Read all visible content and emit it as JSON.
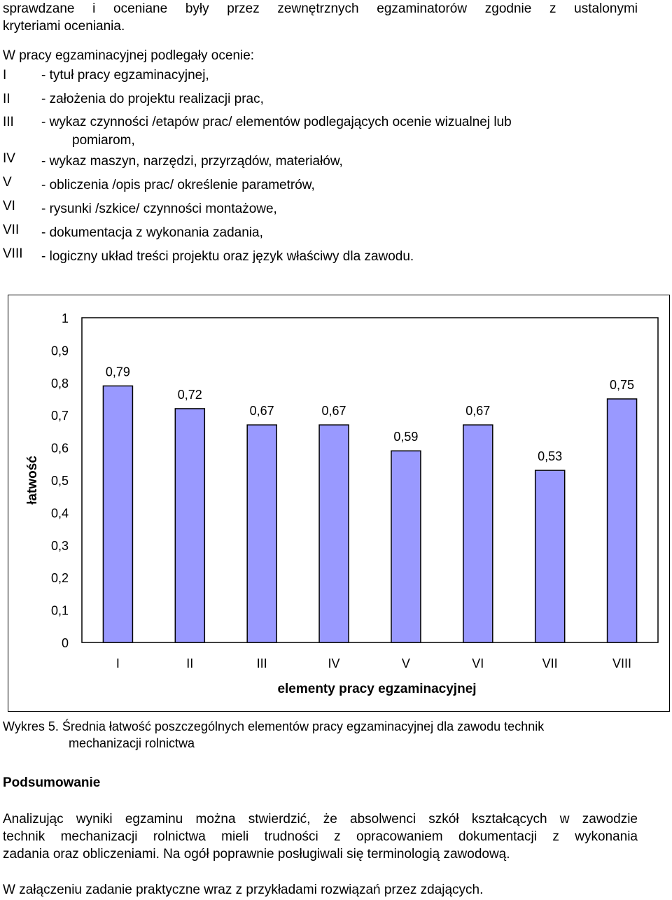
{
  "intro": {
    "line1": "sprawdzane i oceniane były przez zewnętrznych egzaminatorów zgodnie z ustalonymi",
    "line2": "kryteriami oceniania."
  },
  "list": {
    "header": "W pracy egzaminacyjnej podlegały ocenie:",
    "items": [
      {
        "num": "I",
        "text": "- tytuł pracy egzaminacyjnej,"
      },
      {
        "num": "II",
        "text": "- założenia do projektu realizacji prac,"
      },
      {
        "num": "III",
        "text": "- wykaz czynności /etapów prac/ elementów podlegających ocenie wizualnej lub",
        "cont": "pomiarom,"
      },
      {
        "num": "IV",
        "text": "- wykaz maszyn, narzędzi, przyrządów, materiałów,"
      },
      {
        "num": "V",
        "text": "- obliczenia /opis prac/ określenie parametrów,"
      },
      {
        "num": "VI",
        "text": "- rysunki /szkice/ czynności montażowe,"
      },
      {
        "num": "VII",
        "text": "- dokumentacja z wykonania zadania,"
      },
      {
        "num": "VIII",
        "text": "- logiczny układ treści projektu oraz język właściwy dla zawodu."
      }
    ]
  },
  "chart_data": {
    "type": "bar",
    "categories": [
      "I",
      "II",
      "III",
      "IV",
      "V",
      "VI",
      "VII",
      "VIII"
    ],
    "values": [
      0.79,
      0.72,
      0.67,
      0.67,
      0.59,
      0.67,
      0.53,
      0.75
    ],
    "value_labels": [
      "0,79",
      "0,72",
      "0,67",
      "0,67",
      "0,59",
      "0,67",
      "0,53",
      "0,75"
    ],
    "ylim": [
      0,
      1
    ],
    "y_ticks": [
      "0",
      "0,1",
      "0,2",
      "0,3",
      "0,4",
      "0,5",
      "0,6",
      "0,7",
      "0,8",
      "0,9",
      "1"
    ],
    "xlabel": "elementy pracy egzaminacyjnej",
    "ylabel": "łatwość",
    "grid": false,
    "bar_color": "#9999ff"
  },
  "caption": {
    "line1": "Wykres 5. Średnia łatwość poszczególnych elementów pracy egzaminacyjnej dla zawodu technik",
    "line2": "mechanizacji rolnictwa"
  },
  "summary": {
    "heading": "Podsumowanie",
    "para1_lines": [
      "Analizując wyniki egzaminu można stwierdzić, że absolwenci szkół kształcących w zawodzie",
      "technik mechanizacji rolnictwa mieli trudności z opracowaniem dokumentacji z wykonania",
      "zadania oraz obliczeniami. Na ogół poprawnie posługiwali się terminologią zawodową."
    ],
    "para2": "W załączeniu zadanie praktyczne wraz z przykładami rozwiązań przez zdających."
  }
}
